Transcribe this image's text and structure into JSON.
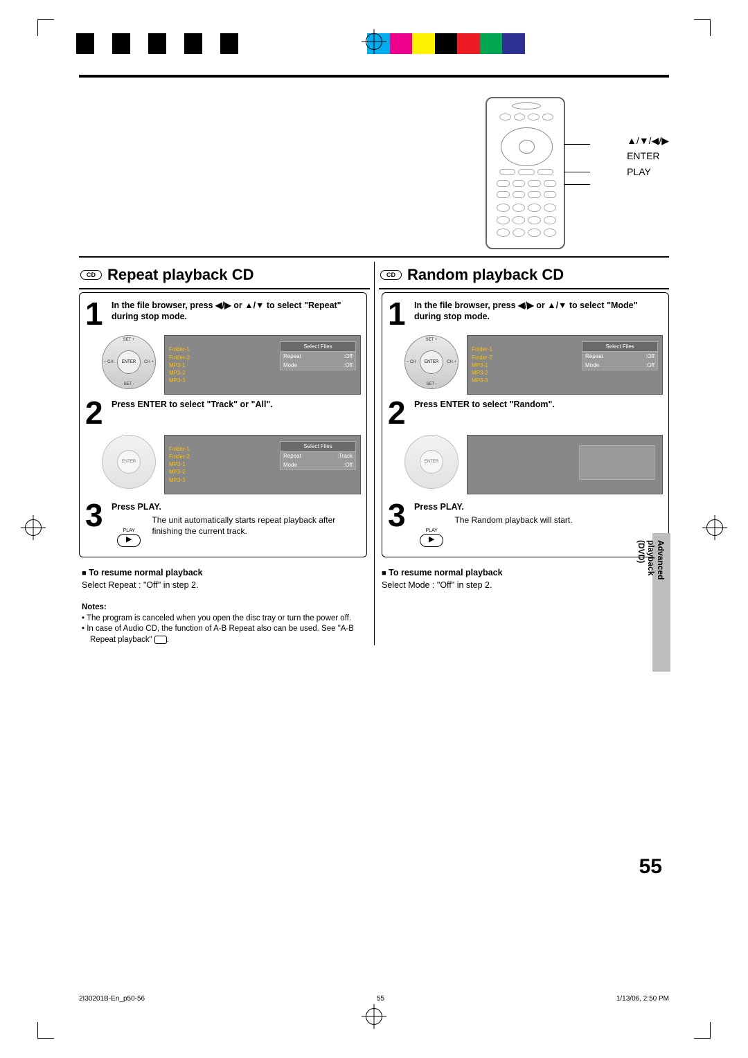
{
  "color_bar": [
    "#000000",
    "#ffffff",
    "#000000",
    "#ffffff",
    "#000000",
    "#ffffff",
    "#000000",
    "#ffffff",
    "#000000",
    "#ffffff",
    "#00aeef",
    "#ec008c",
    "#fff200",
    "#000000",
    "#ed1c24",
    "#00a651",
    "#2e3192",
    "#ffffff"
  ],
  "remote_labels": {
    "arrows": "▲/▼/◀/▶",
    "enter": "ENTER",
    "play": "PLAY"
  },
  "left": {
    "title": "Repeat playback CD",
    "badge": "CD",
    "step1": "In the file browser, press ◀/▶ or ▲/▼ to select \"Repeat\" during stop mode.",
    "screen1": {
      "files": [
        "Folder-1",
        "Folder-2",
        "MP3-1",
        "MP3-2",
        "MP3-3"
      ],
      "panel_head": "Select Files",
      "rows": [
        [
          "Repeat",
          ":Off"
        ],
        [
          "Mode",
          ":Off"
        ]
      ]
    },
    "step2": "Press ENTER to select \"Track\" or \"All\".",
    "screen2": {
      "files": [
        "Folder-1",
        "Folder-2",
        "MP3-1",
        "MP3-2",
        "MP3-3"
      ],
      "panel_head": "Select Files",
      "rows": [
        [
          "Repeat",
          ":Track"
        ],
        [
          "Mode",
          ":Off"
        ]
      ]
    },
    "step3_head": "Press PLAY.",
    "step3_body": "The unit automatically starts repeat playback after finishing the current track.",
    "play_label": "PLAY",
    "resume_head": "To resume normal playback",
    "resume_body": "Select Repeat : \"Off\" in step 2.",
    "notes_head": "Notes:",
    "notes": [
      "The program is canceled when you open the disc tray or turn the power off.",
      "In case of Audio CD, the function of A-B Repeat also can be used. See \"A-B Repeat playback\""
    ]
  },
  "right": {
    "title": "Random playback CD",
    "badge": "CD",
    "step1": "In the file browser, press ◀/▶ or ▲/▼ to select \"Mode\" during stop mode.",
    "screen1": {
      "files": [
        "Folder-1",
        "Folder-2",
        "MP3-1",
        "MP3-2",
        "MP3-3"
      ],
      "panel_head": "Select Files",
      "rows": [
        [
          "Repeat",
          ":Off"
        ],
        [
          "Mode",
          ":Off"
        ]
      ]
    },
    "step2": "Press ENTER to select \"Random\".",
    "step3_head": "Press PLAY.",
    "step3_body": "The Random playback will start.",
    "play_label": "PLAY",
    "resume_head": "To resume normal playback",
    "resume_body": "Select Mode : \"Off\" in step 2."
  },
  "nav_pad": {
    "top": "SET +",
    "bottom": "SET -",
    "left": "– CH",
    "right": "CH +",
    "center": "ENTER"
  },
  "side_label": "Advanced playback (DVD)",
  "page_number": "55",
  "footer": {
    "file": "2I30201B-En_p50-56",
    "num": "55",
    "date": "1/13/06, 2:50 PM"
  }
}
